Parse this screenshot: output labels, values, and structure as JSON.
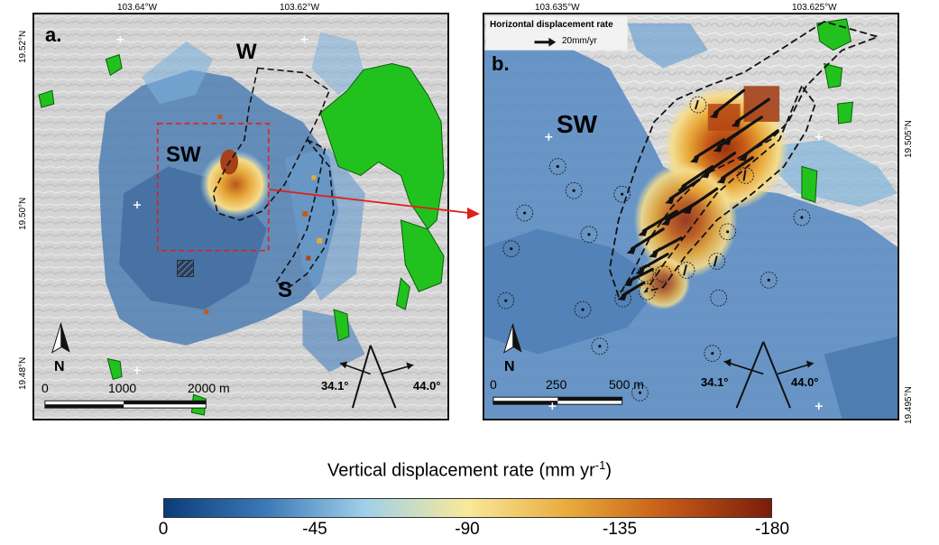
{
  "colors": {
    "green": "#22c21e",
    "colormap": [
      "#0b3c7a",
      "#3d7ab8",
      "#9fd0ea",
      "#f9e99a",
      "#e8a93a",
      "#c55a16",
      "#7a1c0c"
    ],
    "box_red": "#e0201a",
    "arrow_red": "#e0201a"
  },
  "panel_a": {
    "letter": "a.",
    "lon_ticks": [
      "103.64°W",
      "103.62°W"
    ],
    "lat_ticks": [
      "19.52°N",
      "19.50°N",
      "19.48°N"
    ],
    "labels": {
      "w": "W",
      "sw": "SW",
      "s": "S"
    },
    "scale": [
      "0",
      "1000",
      "2000 m"
    ],
    "angles": [
      "34.1°",
      "44.0°"
    ],
    "north": "N"
  },
  "panel_b": {
    "letter": "b.",
    "lon_ticks": [
      "103.635°W",
      "103.625°W"
    ],
    "lat_ticks": [
      "19.505°N",
      "19.495°N"
    ],
    "legend_title": "Horizontal displacement rate",
    "legend_unit": "20mm/yr",
    "labels": {
      "sw": "SW"
    },
    "scale": [
      "0",
      "250",
      "500 m"
    ],
    "angles": [
      "34.1°",
      "44.0°"
    ],
    "north": "N"
  },
  "colorbar": {
    "title_main": "Vertical displacement rate (mm yr",
    "title_sup": "-1",
    "title_end": ")",
    "ticks": [
      "0",
      "-45",
      "-90",
      "-135",
      "-180"
    ]
  }
}
